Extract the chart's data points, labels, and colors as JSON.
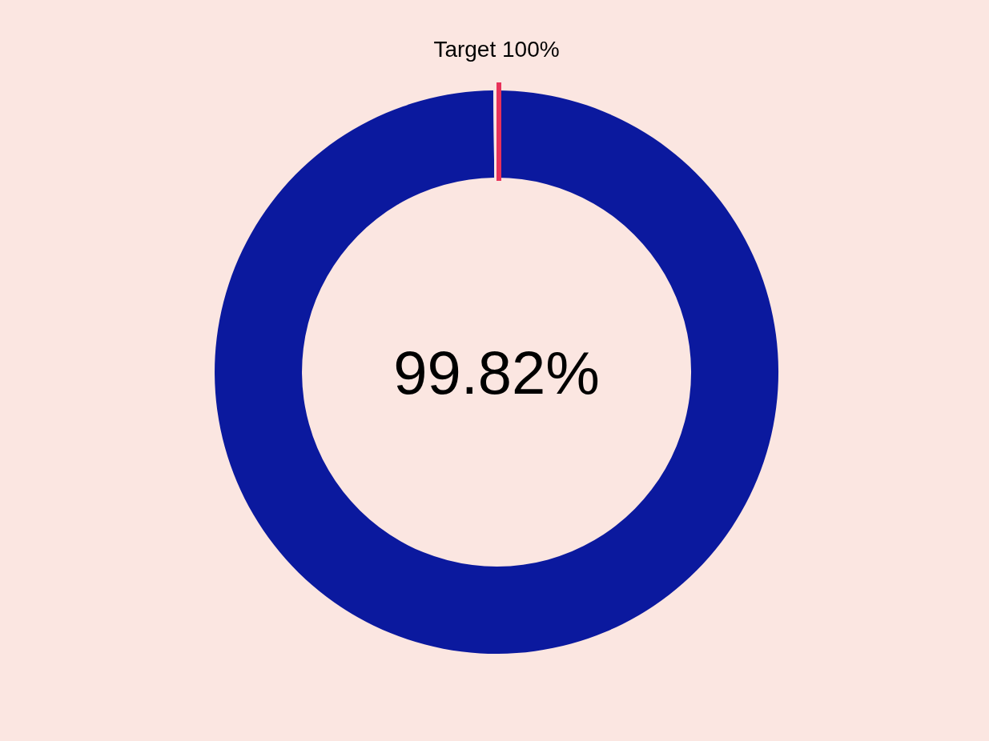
{
  "chart_data": {
    "type": "donut",
    "categories": [
      null,
      null
    ],
    "values": [
      99.82,
      0.18
    ],
    "colors": [
      "#0b199e",
      "#fbe6e1"
    ],
    "value_labels": [
      "99.82%",
      null
    ],
    "annotations": [
      "Target 100%"
    ]
  }
}
